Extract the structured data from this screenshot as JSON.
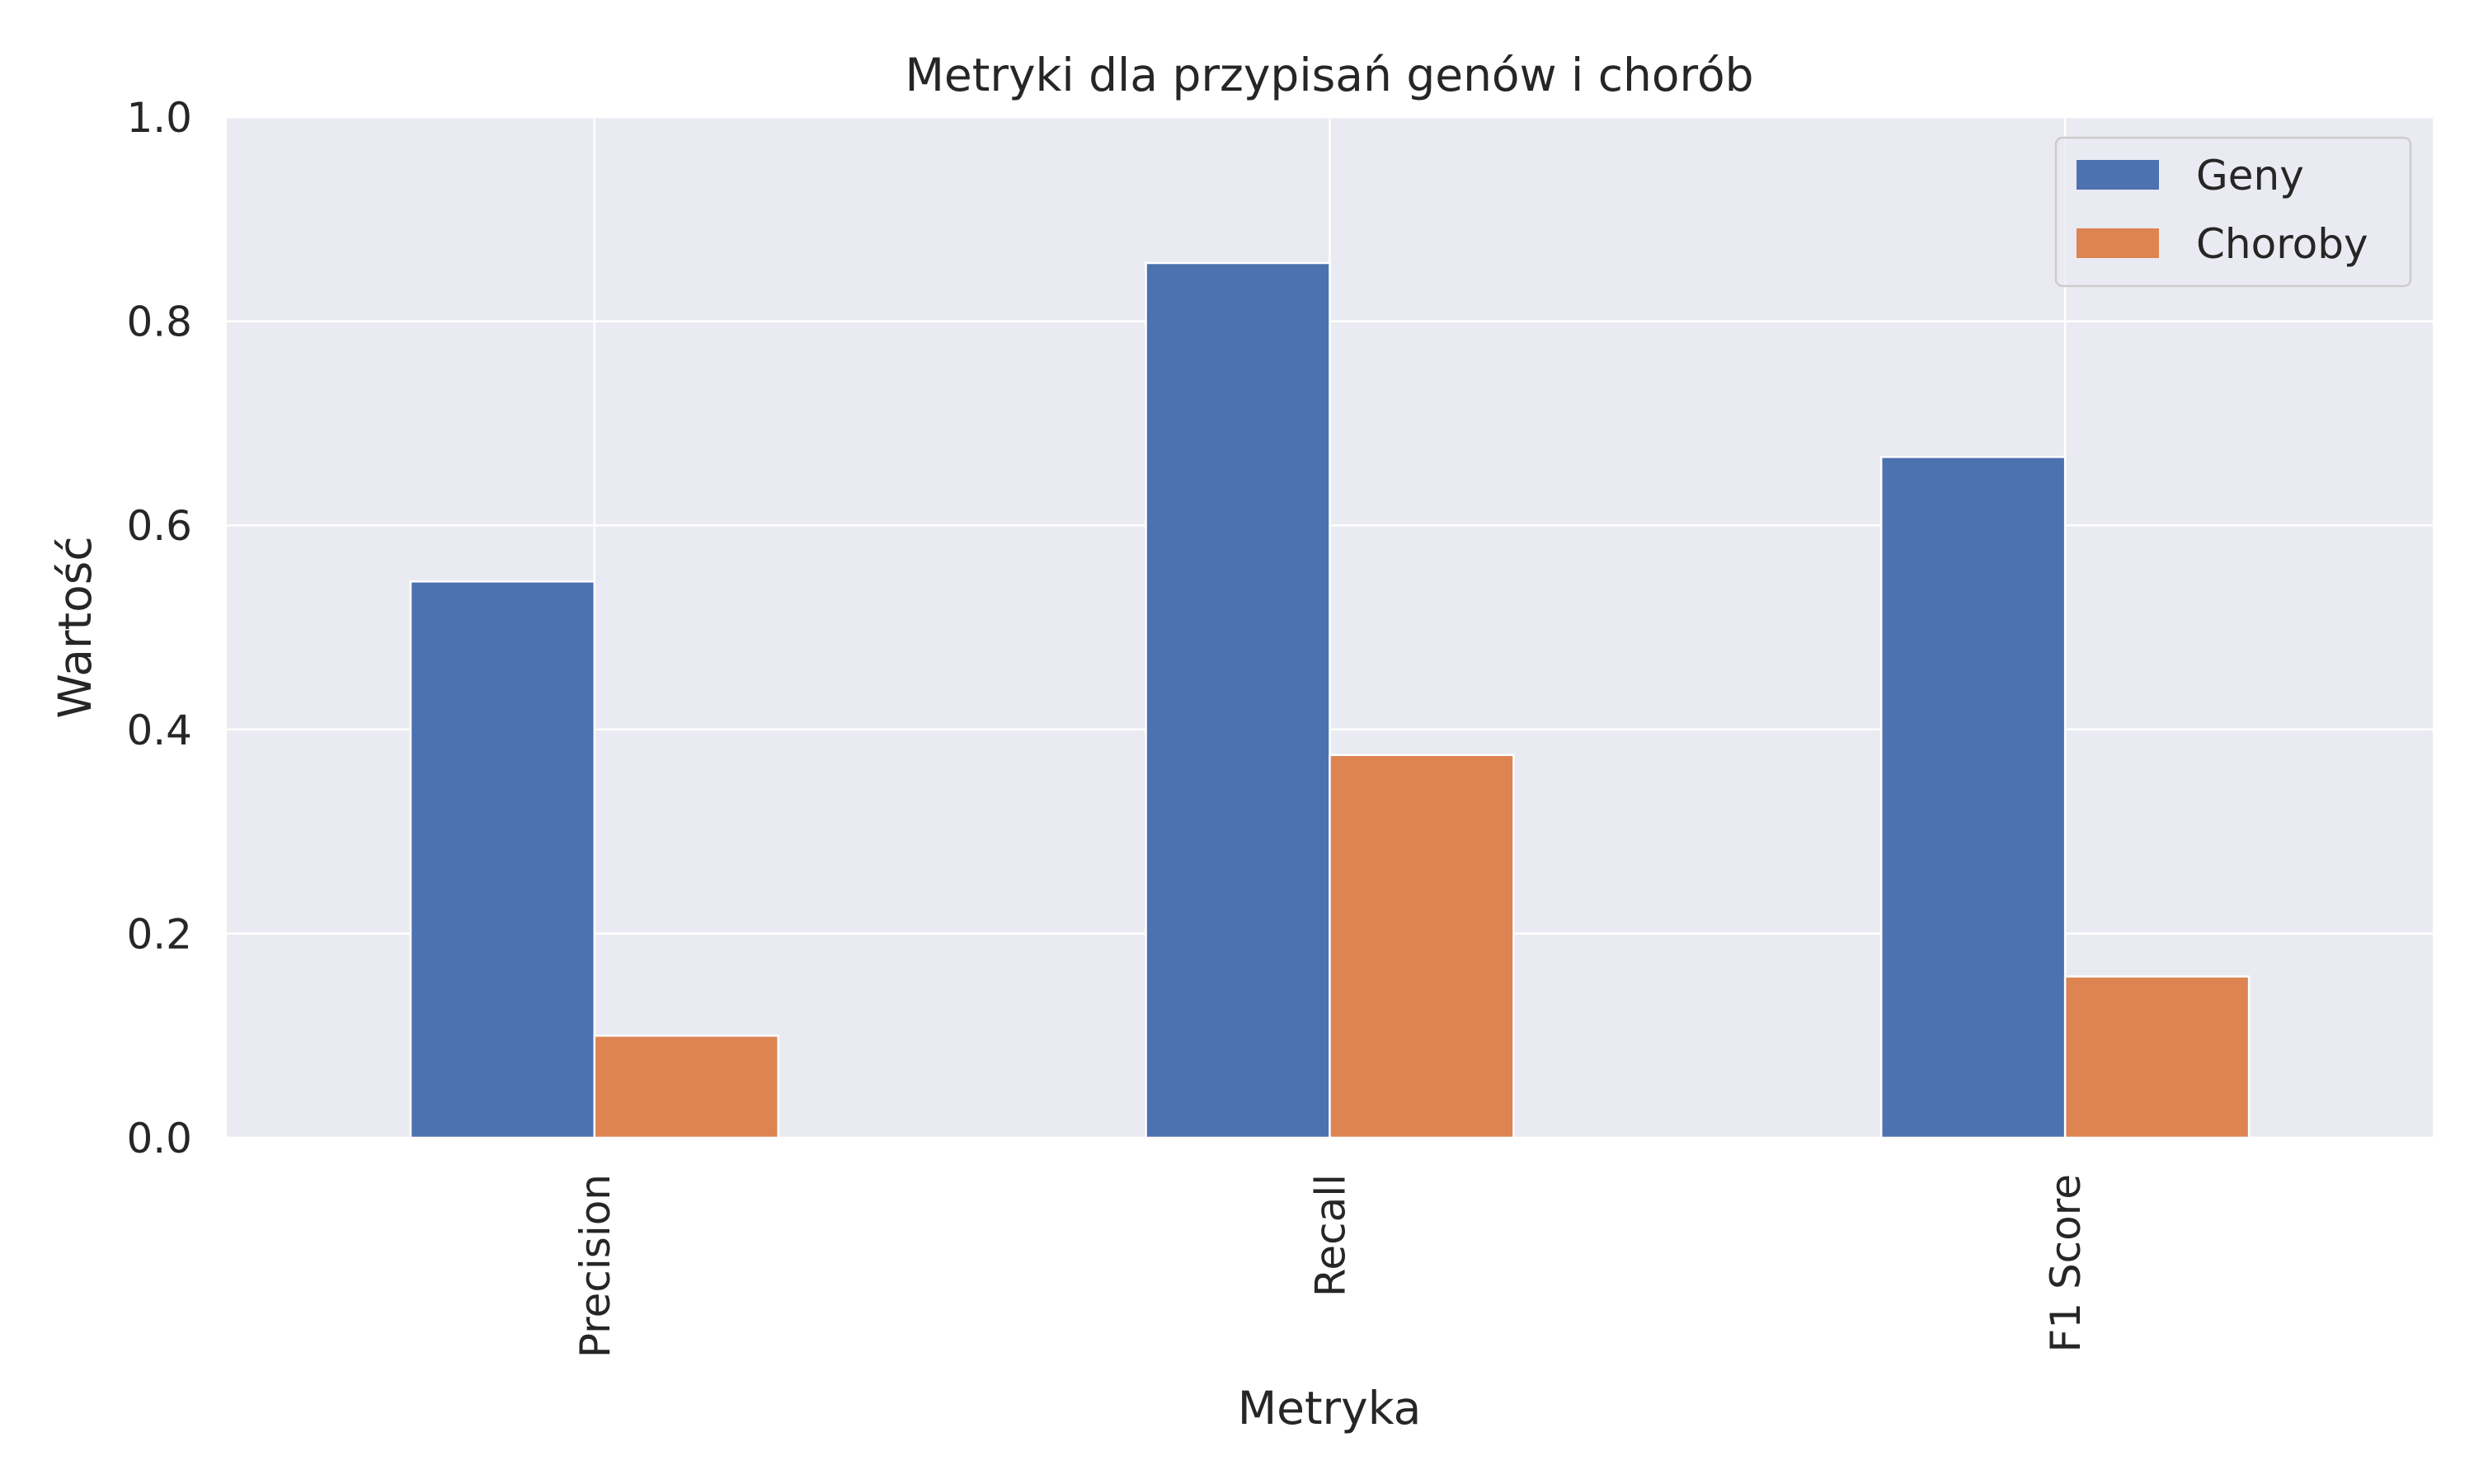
{
  "chart_data": {
    "type": "bar",
    "title": "Metryki dla przypisań genów i chorób",
    "xlabel": "Metryka",
    "ylabel": "Wartość",
    "categories": [
      "Precision",
      "Recall",
      "F1 Score"
    ],
    "series": [
      {
        "name": "Geny",
        "values": [
          0.545,
          0.857,
          0.667
        ],
        "color": "#4c72b0"
      },
      {
        "name": "Choroby",
        "values": [
          0.1,
          0.375,
          0.158
        ],
        "color": "#dd8452"
      }
    ],
    "ylim": [
      0,
      1.0
    ],
    "yticks": [
      "0.0",
      "0.2",
      "0.4",
      "0.6",
      "0.8",
      "1.0"
    ],
    "grid": true,
    "legend": "top-right",
    "style": {
      "plot_bg": "#eaeaf2",
      "grid_color": "#ffffff"
    }
  }
}
